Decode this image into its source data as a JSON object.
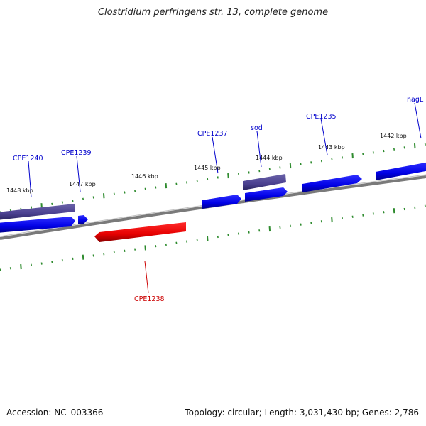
{
  "title": "Clostridium perfringens str. 13, complete genome",
  "footer": {
    "accession": "Accession: NC_003366",
    "summary": "Topology: circular; Length: 3,031,430 bp; Genes: 2,786"
  },
  "colors": {
    "gene_forward": "#0000ee",
    "gene_reverse": "#ee0000",
    "gene_rna": "#4a4090",
    "tick": "#2e8b2e",
    "backbone": "#7a7a7a",
    "label_forward": "#0000cc",
    "label_reverse": "#cc0000"
  },
  "scale_labels": [
    "1448 kbp",
    "1447 kbp",
    "1446 kbp",
    "1445 kbp",
    "1444 kbp",
    "1443 kbp",
    "1442 kbp"
  ],
  "genes": [
    {
      "name": "CPE1240",
      "strand": "forward"
    },
    {
      "name": "CPE1239",
      "strand": "forward"
    },
    {
      "name": "CPE1238",
      "strand": "reverse"
    },
    {
      "name": "CPE1237",
      "strand": "forward"
    },
    {
      "name": "sod",
      "strand": "forward"
    },
    {
      "name": "CPE1235",
      "strand": "forward"
    },
    {
      "name": "nagL",
      "strand": "forward"
    }
  ]
}
